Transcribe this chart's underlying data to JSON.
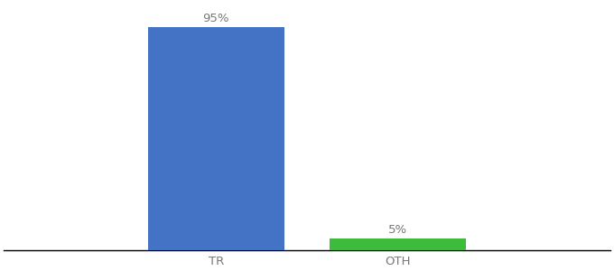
{
  "categories": [
    "TR",
    "OTH"
  ],
  "values": [
    95,
    5
  ],
  "bar_colors": [
    "#4472c4",
    "#3dbb3d"
  ],
  "label_texts": [
    "95%",
    "5%"
  ],
  "background_color": "#ffffff",
  "text_color": "#777777",
  "ylim": [
    0,
    105
  ],
  "bar_width": 0.18,
  "label_fontsize": 9.5,
  "tick_fontsize": 9.5,
  "x_positions": [
    0.38,
    0.62
  ],
  "xlim": [
    0.1,
    0.9
  ]
}
